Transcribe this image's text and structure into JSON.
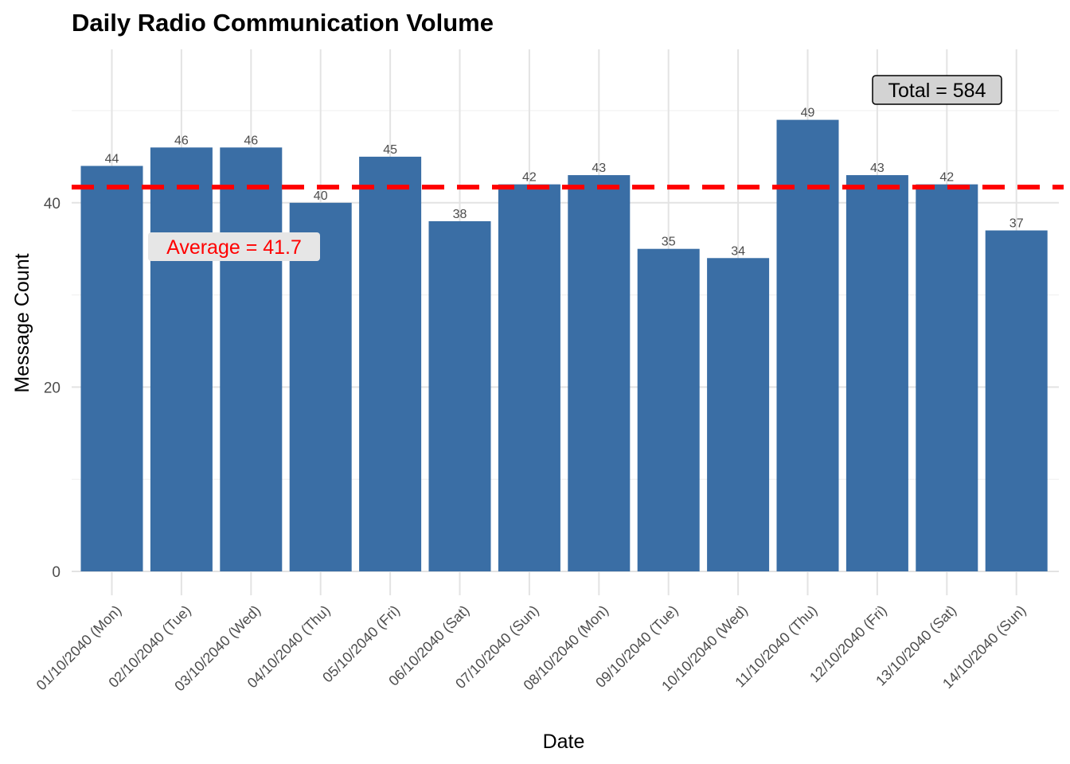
{
  "chart_data": {
    "type": "bar",
    "title": "Daily Radio Communication Volume",
    "xlabel": "Date",
    "ylabel": "Message Count",
    "categories": [
      "01/10/2040 (Mon)",
      "02/10/2040 (Tue)",
      "03/10/2040 (Wed)",
      "04/10/2040 (Thu)",
      "05/10/2040 (Fri)",
      "06/10/2040 (Sat)",
      "07/10/2040 (Sun)",
      "08/10/2040 (Mon)",
      "09/10/2040 (Tue)",
      "10/10/2040 (Wed)",
      "11/10/2040 (Thu)",
      "12/10/2040 (Fri)",
      "13/10/2040 (Sat)",
      "14/10/2040 (Sun)"
    ],
    "values": [
      44,
      46,
      46,
      40,
      45,
      38,
      42,
      43,
      35,
      34,
      49,
      43,
      42,
      37
    ],
    "ylim": [
      0,
      56.4
    ],
    "yticks": [
      0,
      20,
      40
    ],
    "grid": true,
    "bar_color": "#3a6ea5",
    "average": {
      "value": 41.7,
      "label": "Average = 41.7",
      "color": "#ff0000"
    },
    "total_label": "Total = 584"
  }
}
